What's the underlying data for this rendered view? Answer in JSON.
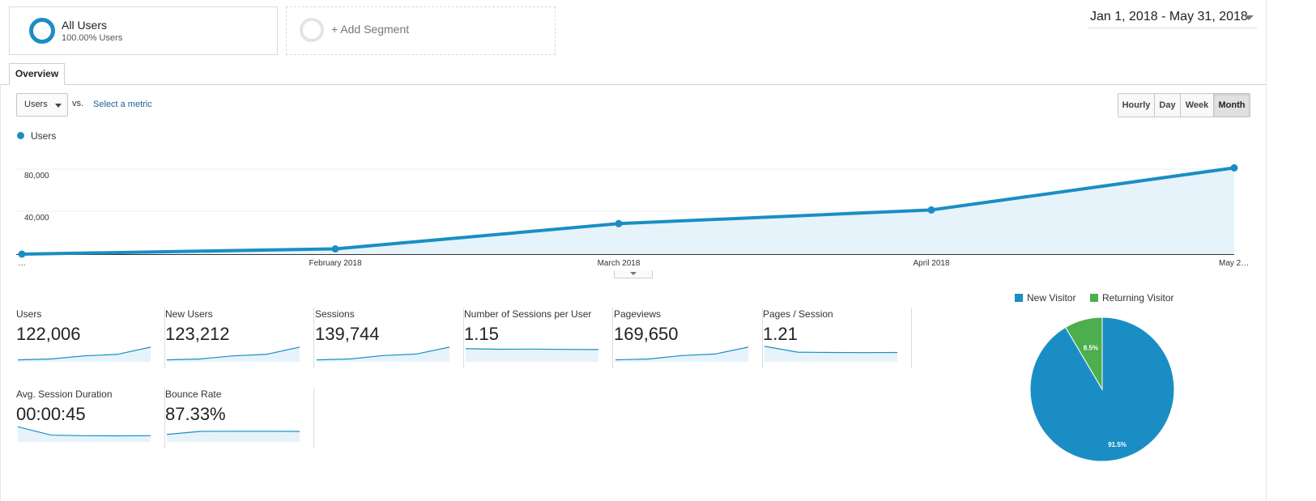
{
  "segments": {
    "all_users": {
      "title": "All Users",
      "subtitle": "100.00% Users"
    },
    "add_segment_label": "+ Add Segment"
  },
  "date_range": "Jan 1, 2018 - May 31, 2018",
  "tabs": [
    {
      "label": "Overview",
      "active": true
    }
  ],
  "metric_selector": {
    "selected": "Users",
    "vs_label": "vs.",
    "select_metric_link": "Select a metric"
  },
  "intervals": [
    {
      "label": "Hourly",
      "active": false
    },
    {
      "label": "Day",
      "active": false
    },
    {
      "label": "Week",
      "active": false
    },
    {
      "label": "Month",
      "active": true
    }
  ],
  "colors": {
    "accent": "#1a8ec4",
    "area_fill": "#e6f3fa",
    "returning": "#4cae4c"
  },
  "chart_data": [
    {
      "type": "line",
      "series": [
        {
          "name": "Users",
          "values": [
            0,
            5000,
            29000,
            42000,
            82000
          ]
        }
      ],
      "categories": [
        "…",
        "February 2018",
        "March 2018",
        "April 2018",
        "May 2…"
      ],
      "ylim": [
        0,
        100000
      ],
      "yticks": [
        "80,000",
        "40,000"
      ],
      "grid": true,
      "legend_position": "top-left"
    },
    {
      "type": "pie",
      "slices": [
        {
          "name": "New Visitor",
          "value": 91.5,
          "label": "91.5%",
          "color": "#1a8ec4"
        },
        {
          "name": "Returning Visitor",
          "value": 8.5,
          "label": "8.5%",
          "color": "#4cae4c"
        }
      ],
      "legend_position": "top"
    }
  ],
  "scorecards": [
    {
      "name": "Users",
      "value": "122,006",
      "spark": [
        2,
        8,
        28,
        38,
        85
      ]
    },
    {
      "name": "New Users",
      "value": "123,212",
      "spark": [
        2,
        8,
        28,
        38,
        85
      ]
    },
    {
      "name": "Sessions",
      "value": "139,744",
      "spark": [
        2,
        8,
        30,
        40,
        85
      ]
    },
    {
      "name": "Number of Sessions per User",
      "value": "1.15",
      "spark": [
        75,
        71,
        72,
        70,
        69
      ]
    },
    {
      "name": "Pageviews",
      "value": "169,650",
      "spark": [
        2,
        8,
        30,
        40,
        85
      ]
    },
    {
      "name": "Pages / Session",
      "value": "1.21",
      "spark": [
        90,
        52,
        50,
        49,
        50
      ]
    },
    {
      "name": "Avg. Session Duration",
      "value": "00:00:45",
      "spark": [
        88,
        34,
        30,
        29,
        30
      ]
    },
    {
      "name": "Bounce Rate",
      "value": "87.33%",
      "spark": [
        38,
        58,
        59,
        59,
        58
      ]
    }
  ]
}
